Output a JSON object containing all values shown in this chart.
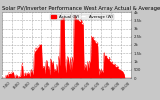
{
  "title": "Solar PV/Inverter Performance West Array Actual & Average Power Output",
  "bg_color": "#c8c8c8",
  "plot_bg_color": "#ffffff",
  "bar_color": "#ff0000",
  "avg_line_color": "#ffffff",
  "grid_color": "#aaaaaa",
  "grid_style": "--",
  "ylim": [
    0,
    4000
  ],
  "num_points": 144,
  "yticks": [
    0,
    500,
    1000,
    1500,
    2000,
    2500,
    3000,
    3500,
    4000
  ],
  "ytick_labels": [
    "0",
    "500",
    "1k",
    "1.5k",
    "2k",
    "2.5k",
    "3k",
    "3.5k",
    "4k"
  ],
  "time_labels": [
    "6:00",
    "7:00",
    "8:00",
    "9:00",
    "10:00",
    "11:00",
    "12:00",
    "13:00",
    "14:00",
    "15:00",
    "16:00",
    "17:00",
    "18:00",
    "19:00"
  ],
  "legend_actual": "Actual (W)",
  "legend_avg": "Average (W)",
  "title_fontsize": 3.8,
  "tick_fontsize": 2.8,
  "legend_fontsize": 2.8
}
